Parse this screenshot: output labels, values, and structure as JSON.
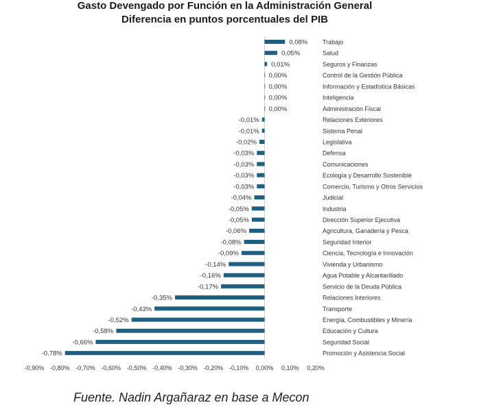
{
  "chart_data": {
    "type": "bar",
    "orientation": "horizontal",
    "title": "Gasto Devengado por Función en la Administración General",
    "subtitle": "Diferencia en puntos porcentuales del PIB",
    "categories": [
      "Trabajo",
      "Salud",
      "Seguros y Finanzas",
      "Control de la Gestión Pública",
      "Información y Estadística Básicas",
      "Inteligencia",
      "Administración Fiscal",
      "Relaciones Exteriores",
      "Sistema Penal",
      "Legislativa",
      "Defensa",
      "Comunicaciones",
      "Ecología y Desarrollo Sostenible",
      "Comercio, Turismo y Otros Servicios",
      "Judicial",
      "Industria",
      "Dirección Superior Ejecutiva",
      "Agricultura, Ganadería y Pesca",
      "Seguridad Interior",
      "Ciencia, Tecnología e Innovación",
      "Vivienda y Urbanismo",
      "Agua Potable y Alcantarillado",
      "Servicio de la Deuda Pública",
      "Relaciones Interiores",
      "Transporte",
      "Energía, Combustibles y Minería",
      "Educación y Cultura",
      "Seguridad Social",
      "Promoción y Asistencia Social"
    ],
    "values": [
      0.08,
      0.05,
      0.01,
      0.0,
      0.0,
      0.0,
      0.0,
      -0.01,
      -0.01,
      -0.02,
      -0.03,
      -0.03,
      -0.03,
      -0.03,
      -0.04,
      -0.05,
      -0.05,
      -0.06,
      -0.08,
      -0.09,
      -0.14,
      -0.16,
      -0.17,
      -0.35,
      -0.43,
      -0.52,
      -0.58,
      -0.66,
      -0.78
    ],
    "data_labels": [
      "0,08%",
      "0,05%",
      "0,01%",
      "0,00%",
      "0,00%",
      "0,00%",
      "0,00%",
      "-0,01%",
      "-0,01%",
      "-0,02%",
      "-0,03%",
      "-0,03%",
      "-0,03%",
      "-0,03%",
      "-0,04%",
      "-0,05%",
      "-0,05%",
      "-0,06%",
      "-0,08%",
      "-0,09%",
      "-0,14%",
      "-0,16%",
      "-0,17%",
      "-0,35%",
      "-0,43%",
      "-0,52%",
      "-0,58%",
      "-0,66%",
      "-0,78%"
    ],
    "xlim": [
      -0.9,
      0.2
    ],
    "x_ticks": [
      -0.9,
      -0.8,
      -0.7,
      -0.6,
      -0.5,
      -0.4,
      -0.3,
      -0.2,
      -0.1,
      0.0,
      0.1,
      0.2
    ],
    "x_tick_labels": [
      "-0,90%",
      "-0,80%",
      "-0,70%",
      "-0,60%",
      "-0,50%",
      "-0,40%",
      "-0,30%",
      "-0,20%",
      "-0,10%",
      "0,00%",
      "0,10%",
      "0,20%"
    ],
    "bar_color": "#1f5f7f",
    "grid": false
  },
  "source_note": "Fuente. Nadin Argañaraz en base a Mecon"
}
